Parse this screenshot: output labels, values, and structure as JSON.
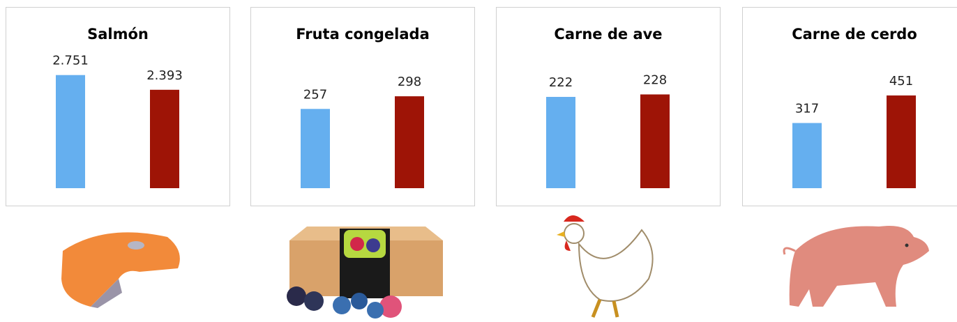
{
  "chart_data": [
    {
      "type": "bar",
      "title": "Salmón",
      "values": [
        2751,
        2393
      ],
      "value_labels": [
        "2.751",
        "2.393"
      ],
      "colors": [
        "#65afef",
        "#9e1406"
      ],
      "ylim": [
        0,
        3000
      ]
    },
    {
      "type": "bar",
      "title": "Fruta congelada",
      "values": [
        257,
        298
      ],
      "colors": [
        "#65afef",
        "#9e1406"
      ],
      "ylim": [
        0,
        400
      ]
    },
    {
      "type": "bar",
      "title": "Carne de ave",
      "values": [
        222,
        228
      ],
      "colors": [
        "#65afef",
        "#9e1406"
      ],
      "ylim": [
        0,
        300
      ]
    },
    {
      "type": "bar",
      "title": "Carne de cerdo",
      "values": [
        317,
        451
      ],
      "colors": [
        "#65afef",
        "#9e1406"
      ],
      "ylim": [
        0,
        600
      ]
    }
  ]
}
